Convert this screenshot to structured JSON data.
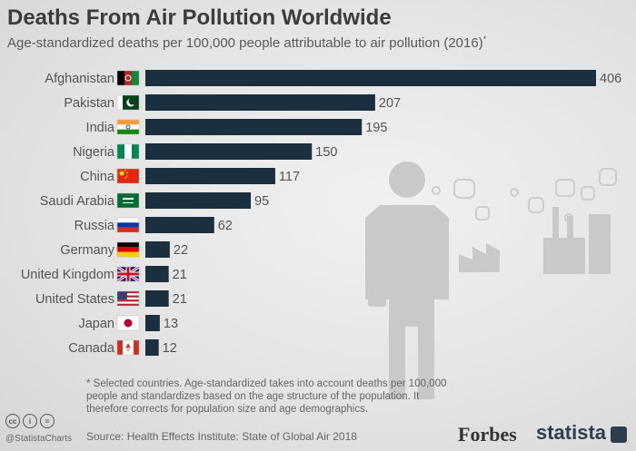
{
  "header": {
    "title": "Deaths From Air Pollution Worldwide",
    "subtitle": "Age-standardized deaths per 100,000 people attributable to air pollution (2016)",
    "subtitle_marker": "*"
  },
  "chart_data": {
    "type": "bar",
    "orientation": "horizontal",
    "categories": [
      "Afghanistan",
      "Pakistan",
      "India",
      "Nigeria",
      "China",
      "Saudi Arabia",
      "Russia",
      "Germany",
      "United Kingdom",
      "United States",
      "Japan",
      "Canada"
    ],
    "values": [
      406,
      207,
      195,
      150,
      117,
      95,
      62,
      22,
      21,
      21,
      13,
      12
    ],
    "title": "Deaths From Air Pollution Worldwide",
    "xlim": [
      0,
      406
    ],
    "bar_color": "#1c2f3f",
    "grid": false,
    "legend": "none",
    "flags": [
      "afghanistan-flag",
      "pakistan-flag",
      "india-flag",
      "nigeria-flag",
      "china-flag",
      "saudi-arabia-flag",
      "russia-flag",
      "germany-flag",
      "united-kingdom-flag",
      "united-states-flag",
      "japan-flag",
      "canada-flag"
    ]
  },
  "footnote": "* Selected countries. Age-standardized takes into account deaths per 100,000 people and standardizes based on the age structure of the population. It therefore corrects for population size and age demographics.",
  "footer": {
    "handle": "@StatistaCharts",
    "source": "Source: Health Effects Institute: State of Global Air 2018",
    "forbes_logo": "Forbes",
    "statista_logo": "statista",
    "license_icons": [
      "cc-icon",
      "by-icon",
      "nd-icon"
    ],
    "license_marks": [
      "cc",
      "i",
      "="
    ]
  }
}
